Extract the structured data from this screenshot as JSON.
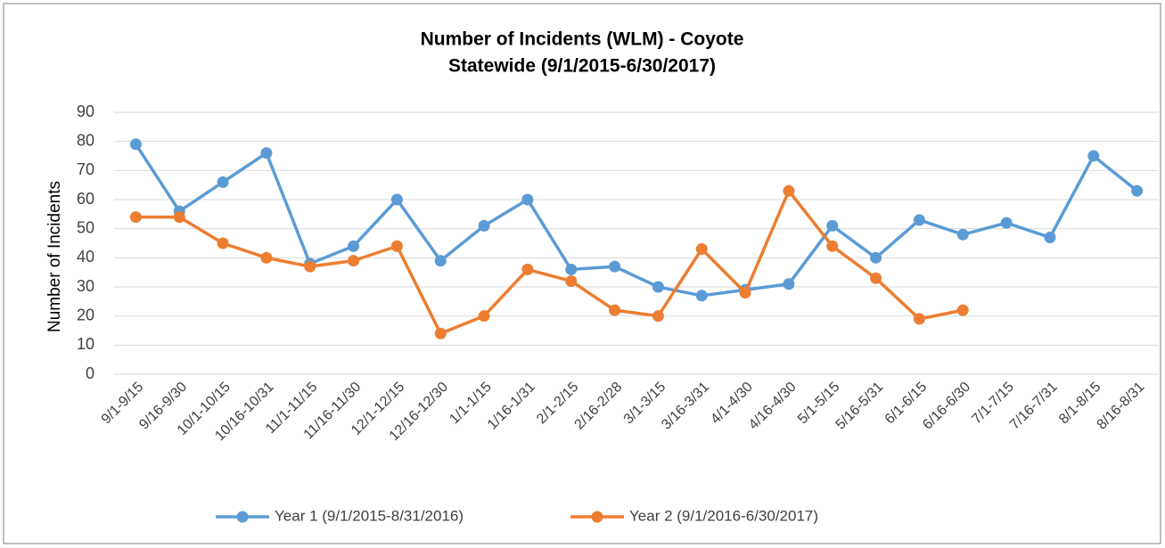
{
  "chart_data": {
    "type": "line",
    "title": "Number of Incidents (WLM) - Coyote",
    "subtitle": "Statewide (9/1/2015-6/30/2017)",
    "y_label": "Number of Incidents",
    "categories": [
      "9/1-9/15",
      "9/16-9/30",
      "10/1-10/15",
      "10/16-10/31",
      "11/1-11/15",
      "11/16-11/30",
      "12/1-12/15",
      "12/16-12/30",
      "1/1-1/15",
      "1/16-1/31",
      "2/1-2/15",
      "2/16-2/28",
      "3/1-3/15",
      "3/16-3/31",
      "4/1-4/30",
      "4/16-4/30",
      "5/1-5/15",
      "5/16-5/31",
      "6/1-6/15",
      "6/16-6/30",
      "7/1-7/15",
      "7/16-7/31",
      "8/1-8/15",
      "8/16-8/31"
    ],
    "series": [
      {
        "name": "Year 1 (9/1/2015-8/31/2016)",
        "color": "#5b9bd5",
        "values": [
          79,
          56,
          66,
          76,
          38,
          44,
          60,
          39,
          51,
          60,
          36,
          37,
          30,
          27,
          29,
          31,
          51,
          40,
          53,
          48,
          52,
          47,
          75,
          63
        ]
      },
      {
        "name": "Year 2 (9/1/2016-6/30/2017)",
        "color": "#ed7d31",
        "values": [
          54,
          54,
          45,
          40,
          37,
          39,
          44,
          14,
          20,
          36,
          32,
          22,
          20,
          43,
          28,
          63,
          44,
          33,
          19,
          22,
          null,
          null,
          null,
          null
        ]
      }
    ],
    "ylim": [
      0,
      90
    ],
    "yticks": [
      0,
      10,
      20,
      30,
      40,
      50,
      60,
      70,
      80,
      90
    ],
    "grid": true,
    "legend": "bottom"
  }
}
